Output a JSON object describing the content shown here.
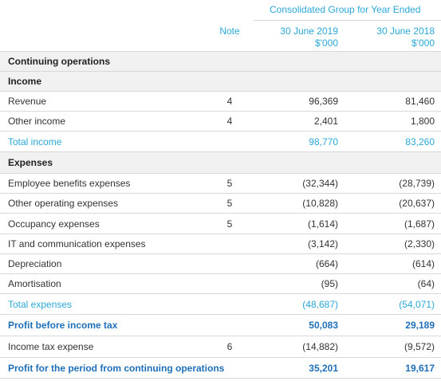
{
  "header": {
    "title": "Consolidated Group for Year Ended",
    "note": "Note",
    "columns": [
      [
        "30 June 2019",
        "$'000"
      ],
      [
        "30 June 2018",
        "$'000"
      ]
    ]
  },
  "rows": [
    {
      "label": "Continuing operations"
    },
    {
      "label": "Income"
    },
    {
      "label": "Revenue",
      "note": "4",
      "values": [
        "96,369",
        "81,460"
      ]
    },
    {
      "label": "Other income",
      "note": "4",
      "values": [
        "2,401",
        "1,800"
      ]
    },
    {
      "label": "Total income",
      "values": [
        "98,770",
        "83,260"
      ]
    },
    {
      "label": "Expenses"
    },
    {
      "label": "Employee benefits expenses",
      "note": "5",
      "values": [
        "(32,344)",
        "(28,739)"
      ]
    },
    {
      "label": "Other operating expenses",
      "note": "5",
      "values": [
        "(10,828)",
        "(20,637)"
      ]
    },
    {
      "label": "Occupancy expenses",
      "note": "5",
      "values": [
        "(1,614)",
        "(1,687)"
      ]
    },
    {
      "label": "IT and communication expenses",
      "values": [
        "(3,142)",
        "(2,330)"
      ]
    },
    {
      "label": "Depreciation",
      "values": [
        "(664)",
        "(614)"
      ]
    },
    {
      "label": "Amortisation",
      "values": [
        "(95)",
        "(64)"
      ]
    },
    {
      "label": "Total expenses",
      "values": [
        "(48,687)",
        "(54,071)"
      ]
    },
    {
      "label": "Profit before income tax",
      "values": [
        "50,083",
        "29,189"
      ]
    },
    {
      "label": "Income tax expense",
      "note": "6",
      "values": [
        "(14,882)",
        "(9,572)"
      ]
    },
    {
      "label": "Profit for the period from continuing operations",
      "values": [
        "35,201",
        "19,617"
      ]
    }
  ]
}
